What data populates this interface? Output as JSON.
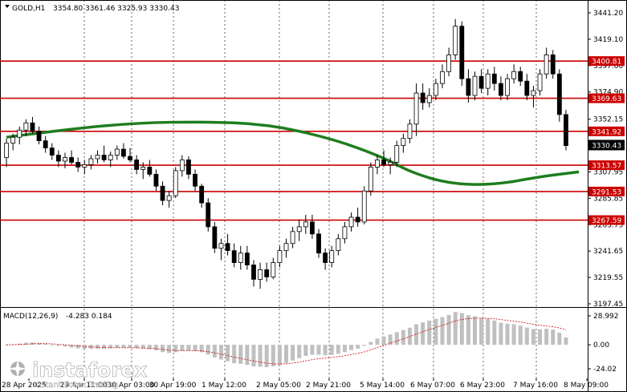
{
  "chart_data": [
    {
      "type": "candlestick",
      "header": {
        "symbol": "GOLD,H1",
        "ohlc": "3354.80 3361.46 3325.93 3330.43"
      },
      "current_price": 3330.43,
      "current_price_label": "3330.43",
      "y_ticks": [
        {
          "v": 3441.2,
          "label": "3441.20"
        },
        {
          "v": 3419.1,
          "label": "3419.10"
        },
        {
          "v": 3397.0,
          "label": "3397.00"
        },
        {
          "v": 3374.9,
          "label": "3374.90"
        },
        {
          "v": 3352.15,
          "label": "3352.15"
        },
        {
          "v": 3330.05,
          "label": "3330.05"
        },
        {
          "v": 3307.95,
          "label": "3307.95"
        },
        {
          "v": 3285.85,
          "label": "3285.85"
        },
        {
          "v": 3263.75,
          "label": "3263.75"
        },
        {
          "v": 3241.65,
          "label": "3241.65"
        },
        {
          "v": 3219.55,
          "label": "3219.55"
        },
        {
          "v": 3197.45,
          "label": "3197.45"
        }
      ],
      "levels": [
        {
          "v": 3400.81,
          "label": "3400.81"
        },
        {
          "v": 3369.63,
          "label": "3369.63"
        },
        {
          "v": 3341.92,
          "label": "3341.92"
        },
        {
          "v": 3313.57,
          "label": "3313.57"
        },
        {
          "v": 3291.53,
          "label": "3291.53"
        },
        {
          "v": 3267.59,
          "label": "3267.59"
        }
      ],
      "x_labels": [
        "28 Apr 2025",
        "29 Apr 11:00",
        "30 Apr 03:00",
        "30 Apr 19:00",
        "1 May 12:00",
        "2 May 05:00",
        "2 May 21:00",
        "5 May 14:00",
        "6 May 07:00",
        "6 May 23:00",
        "7 May 16:00",
        "8 May 09:00"
      ],
      "ohlc": [
        [
          3320,
          3336,
          3312,
          3332
        ],
        [
          3332,
          3340,
          3326,
          3337
        ],
        [
          3337,
          3346,
          3331,
          3343
        ],
        [
          3343,
          3352,
          3338,
          3349
        ],
        [
          3349,
          3354,
          3340,
          3342
        ],
        [
          3342,
          3346,
          3331,
          3334
        ],
        [
          3334,
          3338,
          3324,
          3328
        ],
        [
          3328,
          3332,
          3318,
          3322
        ],
        [
          3322,
          3326,
          3312,
          3317
        ],
        [
          3317,
          3324,
          3311,
          3320
        ],
        [
          3320,
          3326,
          3314,
          3316
        ],
        [
          3316,
          3320,
          3308,
          3312
        ],
        [
          3312,
          3318,
          3306,
          3314
        ],
        [
          3314,
          3322,
          3310,
          3319
        ],
        [
          3319,
          3326,
          3315,
          3322
        ],
        [
          3322,
          3330,
          3316,
          3318
        ],
        [
          3318,
          3325,
          3312,
          3322
        ],
        [
          3322,
          3330,
          3318,
          3327
        ],
        [
          3327,
          3332,
          3319,
          3321
        ],
        [
          3321,
          3328,
          3316,
          3318
        ],
        [
          3318,
          3322,
          3306,
          3310
        ],
        [
          3310,
          3316,
          3302,
          3312
        ],
        [
          3312,
          3318,
          3304,
          3306
        ],
        [
          3306,
          3310,
          3292,
          3296
        ],
        [
          3296,
          3300,
          3280,
          3284
        ],
        [
          3284,
          3292,
          3278,
          3288
        ],
        [
          3288,
          3312,
          3286,
          3309
        ],
        [
          3309,
          3322,
          3304,
          3318
        ],
        [
          3318,
          3321,
          3302,
          3306
        ],
        [
          3306,
          3310,
          3292,
          3296
        ],
        [
          3296,
          3298,
          3278,
          3282
        ],
        [
          3282,
          3286,
          3258,
          3262
        ],
        [
          3262,
          3266,
          3240,
          3244
        ],
        [
          3244,
          3252,
          3234,
          3248
        ],
        [
          3248,
          3256,
          3238,
          3242
        ],
        [
          3242,
          3248,
          3228,
          3232
        ],
        [
          3232,
          3246,
          3226,
          3240
        ],
        [
          3240,
          3246,
          3226,
          3230
        ],
        [
          3230,
          3234,
          3212,
          3218
        ],
        [
          3218,
          3232,
          3210,
          3226
        ],
        [
          3226,
          3232,
          3216,
          3220
        ],
        [
          3220,
          3236,
          3218,
          3232
        ],
        [
          3232,
          3246,
          3228,
          3242
        ],
        [
          3242,
          3252,
          3236,
          3248
        ],
        [
          3248,
          3262,
          3244,
          3258
        ],
        [
          3258,
          3268,
          3250,
          3262
        ],
        [
          3262,
          3272,
          3256,
          3266
        ],
        [
          3266,
          3272,
          3252,
          3256
        ],
        [
          3256,
          3260,
          3236,
          3240
        ],
        [
          3240,
          3244,
          3226,
          3232
        ],
        [
          3232,
          3246,
          3228,
          3242
        ],
        [
          3242,
          3256,
          3238,
          3252
        ],
        [
          3252,
          3266,
          3248,
          3262
        ],
        [
          3262,
          3274,
          3258,
          3270
        ],
        [
          3270,
          3278,
          3262,
          3266
        ],
        [
          3266,
          3296,
          3264,
          3292
        ],
        [
          3292,
          3316,
          3288,
          3312
        ],
        [
          3312,
          3322,
          3306,
          3318
        ],
        [
          3318,
          3326,
          3312,
          3314
        ],
        [
          3314,
          3320,
          3306,
          3316
        ],
        [
          3316,
          3334,
          3312,
          3330
        ],
        [
          3330,
          3340,
          3324,
          3336
        ],
        [
          3336,
          3352,
          3332,
          3348
        ],
        [
          3348,
          3382,
          3338,
          3374
        ],
        [
          3374,
          3382,
          3360,
          3366
        ],
        [
          3366,
          3378,
          3362,
          3372
        ],
        [
          3372,
          3386,
          3368,
          3382
        ],
        [
          3382,
          3398,
          3378,
          3392
        ],
        [
          3392,
          3412,
          3388,
          3406
        ],
        [
          3406,
          3436,
          3402,
          3430
        ],
        [
          3430,
          3434,
          3380,
          3386
        ],
        [
          3386,
          3394,
          3366,
          3372
        ],
        [
          3372,
          3392,
          3368,
          3388
        ],
        [
          3388,
          3394,
          3374,
          3378
        ],
        [
          3378,
          3394,
          3372,
          3390
        ],
        [
          3390,
          3396,
          3376,
          3382
        ],
        [
          3382,
          3388,
          3368,
          3372
        ],
        [
          3372,
          3390,
          3368,
          3386
        ],
        [
          3386,
          3398,
          3382,
          3392
        ],
        [
          3392,
          3396,
          3380,
          3384
        ],
        [
          3384,
          3390,
          3368,
          3372
        ],
        [
          3372,
          3380,
          3362,
          3376
        ],
        [
          3376,
          3394,
          3372,
          3390
        ],
        [
          3390,
          3412,
          3386,
          3406
        ],
        [
          3406,
          3410,
          3386,
          3390
        ],
        [
          3390,
          3394,
          3350,
          3356
        ],
        [
          3356,
          3360,
          3326,
          3330
        ]
      ],
      "ma_line": [
        [
          0,
          3337
        ],
        [
          10,
          3344
        ],
        [
          20,
          3349
        ],
        [
          30,
          3350
        ],
        [
          40,
          3348
        ],
        [
          50,
          3336
        ],
        [
          58,
          3320
        ],
        [
          62,
          3308
        ],
        [
          68,
          3298
        ],
        [
          75,
          3297
        ],
        [
          82,
          3304
        ],
        [
          88,
          3308
        ]
      ],
      "indicator": {
        "name": "MACD(12,26,9)",
        "values_label": "-4.283 0.184",
        "y_ticks": [
          {
            "v": 28.992,
            "label": "28.992"
          },
          {
            "v": 0.0,
            "label": "0.00"
          },
          {
            "v": -24.02,
            "label": "-24.02"
          }
        ]
      }
    }
  ],
  "watermark": {
    "brand": "instaforex",
    "tagline": "Instant Forex Trading"
  },
  "colors": {
    "level_line": "#cc0000",
    "ma_line": "#1e7d1e",
    "macd_hist": "#c0c0c0",
    "signal_line": "#cc0000",
    "grid": "#000000"
  }
}
